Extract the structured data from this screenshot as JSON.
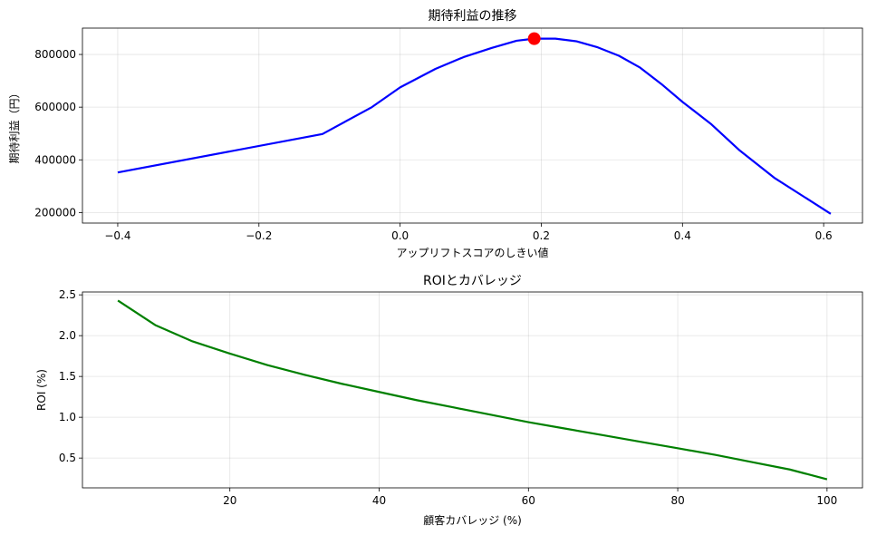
{
  "chart_data": [
    {
      "type": "line",
      "title": "期待利益の推移",
      "xlabel": "アップリフトスコアのしきい値",
      "ylabel": "期待利益（円）",
      "xlim": [
        -0.45,
        0.655
      ],
      "ylim": [
        160000,
        900000
      ],
      "xticks": [
        -0.4,
        -0.2,
        0.0,
        0.2,
        0.4,
        0.6
      ],
      "xtick_labels": [
        "−0.4",
        "−0.2",
        "0.0",
        "0.2",
        "0.4",
        "0.6"
      ],
      "yticks": [
        200000,
        400000,
        600000,
        800000
      ],
      "ytick_labels": [
        "200000",
        "400000",
        "600000",
        "800000"
      ],
      "grid": true,
      "series": [
        {
          "color": "#0000ff",
          "x": [
            -0.4,
            -0.11,
            -0.04,
            0.0,
            0.05,
            0.09,
            0.13,
            0.165,
            0.19,
            0.22,
            0.25,
            0.28,
            0.31,
            0.34,
            0.37,
            0.4,
            0.44,
            0.48,
            0.53,
            0.61
          ],
          "y": [
            352000,
            498000,
            600000,
            675000,
            745000,
            790000,
            825000,
            852000,
            860000,
            860000,
            850000,
            827000,
            795000,
            750000,
            688000,
            620000,
            537000,
            438000,
            332000,
            195000
          ]
        }
      ],
      "highlight_point": {
        "x": 0.19,
        "y": 860000,
        "color": "#ff0000"
      }
    },
    {
      "type": "line",
      "title": "ROIとカバレッジ",
      "xlabel": "顧客カバレッジ (%)",
      "ylabel": "ROI (%)",
      "xlim": [
        0.25,
        104.75
      ],
      "ylim": [
        0.135,
        2.535
      ],
      "xticks": [
        20,
        40,
        60,
        80,
        100
      ],
      "xtick_labels": [
        "20",
        "40",
        "60",
        "80",
        "100"
      ],
      "yticks": [
        0.5,
        1.0,
        1.5,
        2.0,
        2.5
      ],
      "ytick_labels": [
        "0.5",
        "1.0",
        "1.5",
        "2.0",
        "2.5"
      ],
      "grid": true,
      "series": [
        {
          "color": "#008000",
          "x": [
            5,
            10,
            15,
            20,
            25,
            30,
            35,
            40,
            45,
            50,
            55,
            60,
            65,
            70,
            75,
            80,
            85,
            90,
            95,
            100
          ],
          "y": [
            2.43,
            2.13,
            1.93,
            1.78,
            1.64,
            1.52,
            1.41,
            1.31,
            1.21,
            1.12,
            1.03,
            0.94,
            0.86,
            0.78,
            0.7,
            0.62,
            0.54,
            0.45,
            0.36,
            0.24
          ]
        }
      ]
    }
  ]
}
